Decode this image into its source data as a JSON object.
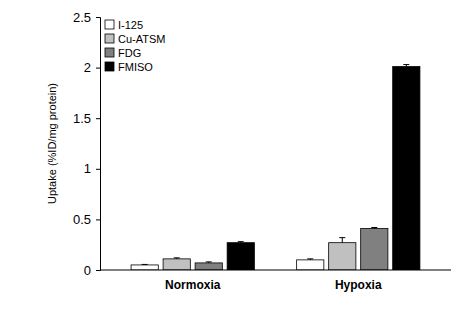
{
  "chart_data": {
    "type": "bar",
    "categories": [
      "Normoxia",
      "Hypoxia"
    ],
    "series": [
      {
        "name": "I-125",
        "color": "#ffffff",
        "values": [
          0.05,
          0.1
        ],
        "errors": [
          0.005,
          0.01
        ]
      },
      {
        "name": "Cu-ATSM",
        "color": "#c0c0c0",
        "values": [
          0.11,
          0.27
        ],
        "errors": [
          0.01,
          0.05
        ]
      },
      {
        "name": "FDG",
        "color": "#808080",
        "values": [
          0.07,
          0.41
        ],
        "errors": [
          0.01,
          0.01
        ]
      },
      {
        "name": "FMISO",
        "color": "#000000",
        "values": [
          0.27,
          2.01
        ],
        "errors": [
          0.01,
          0.02
        ]
      }
    ],
    "y_label": "Uptake (%ID/mg protein)",
    "ylim": [
      0,
      2.5
    ],
    "yticks": [
      0,
      0.5,
      1,
      1.5,
      2,
      2.5
    ],
    "grid": false,
    "legend": "top-left"
  }
}
